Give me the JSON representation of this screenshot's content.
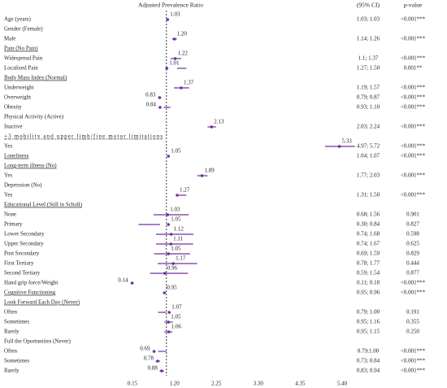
{
  "chart_data": {
    "type": "forest",
    "title": "Adjusted Prevalence Ratio",
    "ci_header": "(95% CI)",
    "p_header": "p-value",
    "color": "#7030a0",
    "ref_line": 1,
    "xlim": [
      0.15,
      5.4
    ],
    "xticks": [
      0.15,
      {
        "value": 1.2,
        "label": "1.20"
      },
      2.25,
      {
        "value": 3.3,
        "label": "3.30"
      },
      4.35,
      {
        "value": 5.4,
        "label": "5.40"
      }
    ],
    "categories": [
      "Age (years)",
      "Gender (Female)",
      "Male",
      "Pain (No Pain)",
      "Widespread Pain",
      "Localized Pain",
      "Body Mass Index (Normal)",
      "Underweight",
      "Overweight",
      "Obesity",
      "Physical Activity (Active)",
      "Inactive",
      "+3 mobility and upper limb/fine motor limitations",
      "Yes",
      "Loneliness",
      "Long-term illness (No)",
      "Yes",
      "Depression (No)",
      "Yes",
      "Educational Level (Still in Scholl)",
      "None",
      "Primary",
      "Lower Secondary",
      "Upper Secondary",
      "Post Secondary",
      "First Tertiary",
      "Second Tertiary",
      "Hand grip force/Weight",
      "Cognitive Functioning",
      "Look Forward Each Day (Never)",
      "Often",
      "Sometimes",
      "Rarely",
      "Full the Oportunities (Never)",
      "Often",
      "Sometimes",
      "Rarely"
    ],
    "values": [
      1.03,
      null,
      1.2,
      null,
      1.22,
      1.01,
      null,
      1.37,
      0.83,
      0.84,
      null,
      2.13,
      null,
      5.33,
      1.05,
      null,
      1.89,
      null,
      1.27,
      null,
      1.03,
      1.05,
      1.12,
      1.11,
      1.05,
      1.17,
      0.96,
      0.14,
      0.95,
      null,
      1.07,
      1.05,
      1.06,
      null,
      0.69,
      0.78,
      0.88
    ],
    "value_labels": [
      "1.03",
      null,
      "1.20",
      null,
      "1.22",
      "1.01",
      null,
      "1.37",
      "0.83",
      "0.84",
      null,
      "2.13",
      null,
      "5.33",
      "1.05",
      null,
      "1.89",
      null,
      "1.27",
      null,
      "1.03",
      "1.05",
      "1.12",
      "1.11",
      "1.05",
      "1.17",
      "0.96",
      "0.14",
      "0.95",
      null,
      "1.07",
      "1.05",
      "1.06",
      null,
      "0.69",
      "0.78",
      "0.88"
    ],
    "ci_low": [
      1.03,
      null,
      1.14,
      null,
      1.1,
      1.27,
      null,
      1.19,
      0.79,
      0.93,
      null,
      2.03,
      null,
      4.97,
      1.04,
      null,
      1.77,
      null,
      1.31,
      null,
      0.68,
      0.3,
      0.74,
      0.74,
      0.69,
      0.78,
      0.59,
      0.11,
      0.95,
      null,
      0.79,
      0.95,
      0.95,
      null,
      0.79,
      0.73,
      0.83
    ],
    "ci_high": [
      1.03,
      null,
      1.26,
      null,
      1.37,
      1.5,
      null,
      1.57,
      0.87,
      1.1,
      null,
      2.24,
      null,
      5.72,
      1.07,
      null,
      2.03,
      null,
      1.5,
      null,
      1.56,
      0.84,
      1.68,
      1.67,
      1.59,
      1.77,
      1.54,
      0.18,
      0.96,
      null,
      1.0,
      1.16,
      1.15,
      null,
      1.0,
      0.84,
      0.94
    ],
    "ci_labels": [
      "1.03; 1.03",
      null,
      "1.14; 1.26",
      null,
      "1.1; 1.37",
      "1.27; 1.50",
      null,
      "1.19; 1.57",
      "0.79; 0.87",
      "0.93; 1.10",
      null,
      "2.03; 2.24",
      null,
      "4.97; 5.72",
      "1.04; 1.07",
      null,
      "1.77; 2.03",
      null,
      "1.31; 1.50",
      null,
      "0.68; 1.56",
      "0.30; 0.84",
      "0.74; 1.68",
      "0.74; 1.67",
      "0.69; 1.59",
      "0.78; 1.77",
      "0.59; 1.54",
      "0.11; 0.18",
      "0.95; 0.96",
      null,
      "0.79; 1.00",
      "0.95; 1.16",
      "0.95; 1.15",
      null,
      "0.79;1.00",
      "0.73; 0.84",
      "0.83; 0.94"
    ],
    "p_values": [
      "<0.001***",
      null,
      "<0.001***",
      null,
      "<0.001***",
      "0.001**",
      null,
      "<0.001***",
      "<0.001***",
      "<0.001***",
      null,
      "<0.001***",
      null,
      "<0.001***",
      "<0.001***",
      null,
      "<0.001***",
      null,
      "<0.001***",
      null,
      "0.901",
      "0.827",
      "0.598",
      "0.625",
      "0.829",
      "0.444",
      "0.877",
      "<0.001***",
      "<0.001***",
      null,
      "0.191",
      "0.355",
      "0.250",
      null,
      "<0.001***",
      "<0.001***",
      "<0.001***"
    ]
  }
}
